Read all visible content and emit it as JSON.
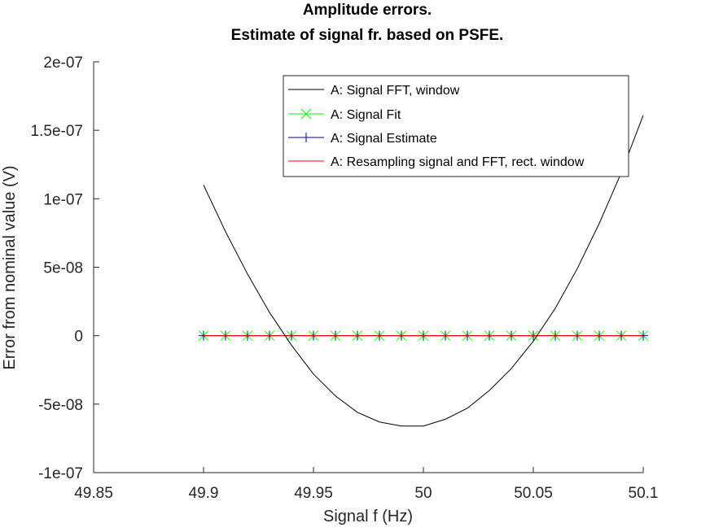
{
  "chart_data": {
    "type": "line",
    "title": [
      "Amplitude errors.",
      "Estimate of signal fr. based on PSFE."
    ],
    "xlabel": "Signal f (Hz)",
    "ylabel": "Error from nominal value (V)",
    "xlim": [
      49.85,
      50.1
    ],
    "ylim": [
      -1e-07,
      2e-07
    ],
    "xticks": [
      49.85,
      49.9,
      49.95,
      50,
      50.05,
      50.1
    ],
    "xtick_labels": [
      "49.85",
      "49.9",
      "49.95",
      "50",
      "50.05",
      "50.1"
    ],
    "yticks": [
      -1e-07,
      -5e-08,
      0,
      5e-08,
      1e-07,
      1.5e-07,
      2e-07
    ],
    "ytick_labels": [
      "-1e-07",
      "-5e-08",
      "0",
      "5e-08",
      "1e-07",
      "1.5e-07",
      "2e-07"
    ],
    "grid": false,
    "legend_position": "top-right",
    "x": [
      49.9,
      49.91,
      49.92,
      49.93,
      49.94,
      49.95,
      49.96,
      49.97,
      49.98,
      49.99,
      50.0,
      50.01,
      50.02,
      50.03,
      50.04,
      50.05,
      50.06,
      50.07,
      50.08,
      50.09,
      50.1
    ],
    "series": [
      {
        "name": "A: Signal FFT, window",
        "color": "#000000",
        "marker": "none",
        "values": [
          1.1e-07,
          7.6e-08,
          4.5e-08,
          1.7e-08,
          -7e-09,
          -2.8e-08,
          -4.4e-08,
          -5.6e-08,
          -6.3e-08,
          -6.6e-08,
          -6.6e-08,
          -6.1e-08,
          -5.3e-08,
          -4e-08,
          -2.4e-08,
          -4e-09,
          2e-08,
          4.9e-08,
          8.2e-08,
          1.19e-07,
          1.61e-07
        ]
      },
      {
        "name": "A: Signal Fit",
        "color": "#00ff00",
        "marker": "x",
        "values": [
          0,
          0,
          0,
          0,
          0,
          0,
          0,
          0,
          0,
          0,
          0,
          0,
          0,
          0,
          0,
          0,
          0,
          0,
          0,
          0,
          0
        ]
      },
      {
        "name": "A: Signal Estimate",
        "color": "#00008b",
        "marker": "+",
        "values": [
          0,
          0,
          0,
          0,
          0,
          0,
          0,
          0,
          0,
          0,
          0,
          0,
          0,
          0,
          0,
          0,
          0,
          0,
          0,
          0,
          0
        ]
      },
      {
        "name": "A: Resampling signal and FFT, rect. window",
        "color": "#ff0000",
        "marker": "none",
        "values": [
          0,
          0,
          0,
          0,
          0,
          0,
          0,
          0,
          0,
          0,
          0,
          0,
          0,
          0,
          0,
          0,
          0,
          0,
          0,
          0,
          0
        ]
      }
    ]
  }
}
